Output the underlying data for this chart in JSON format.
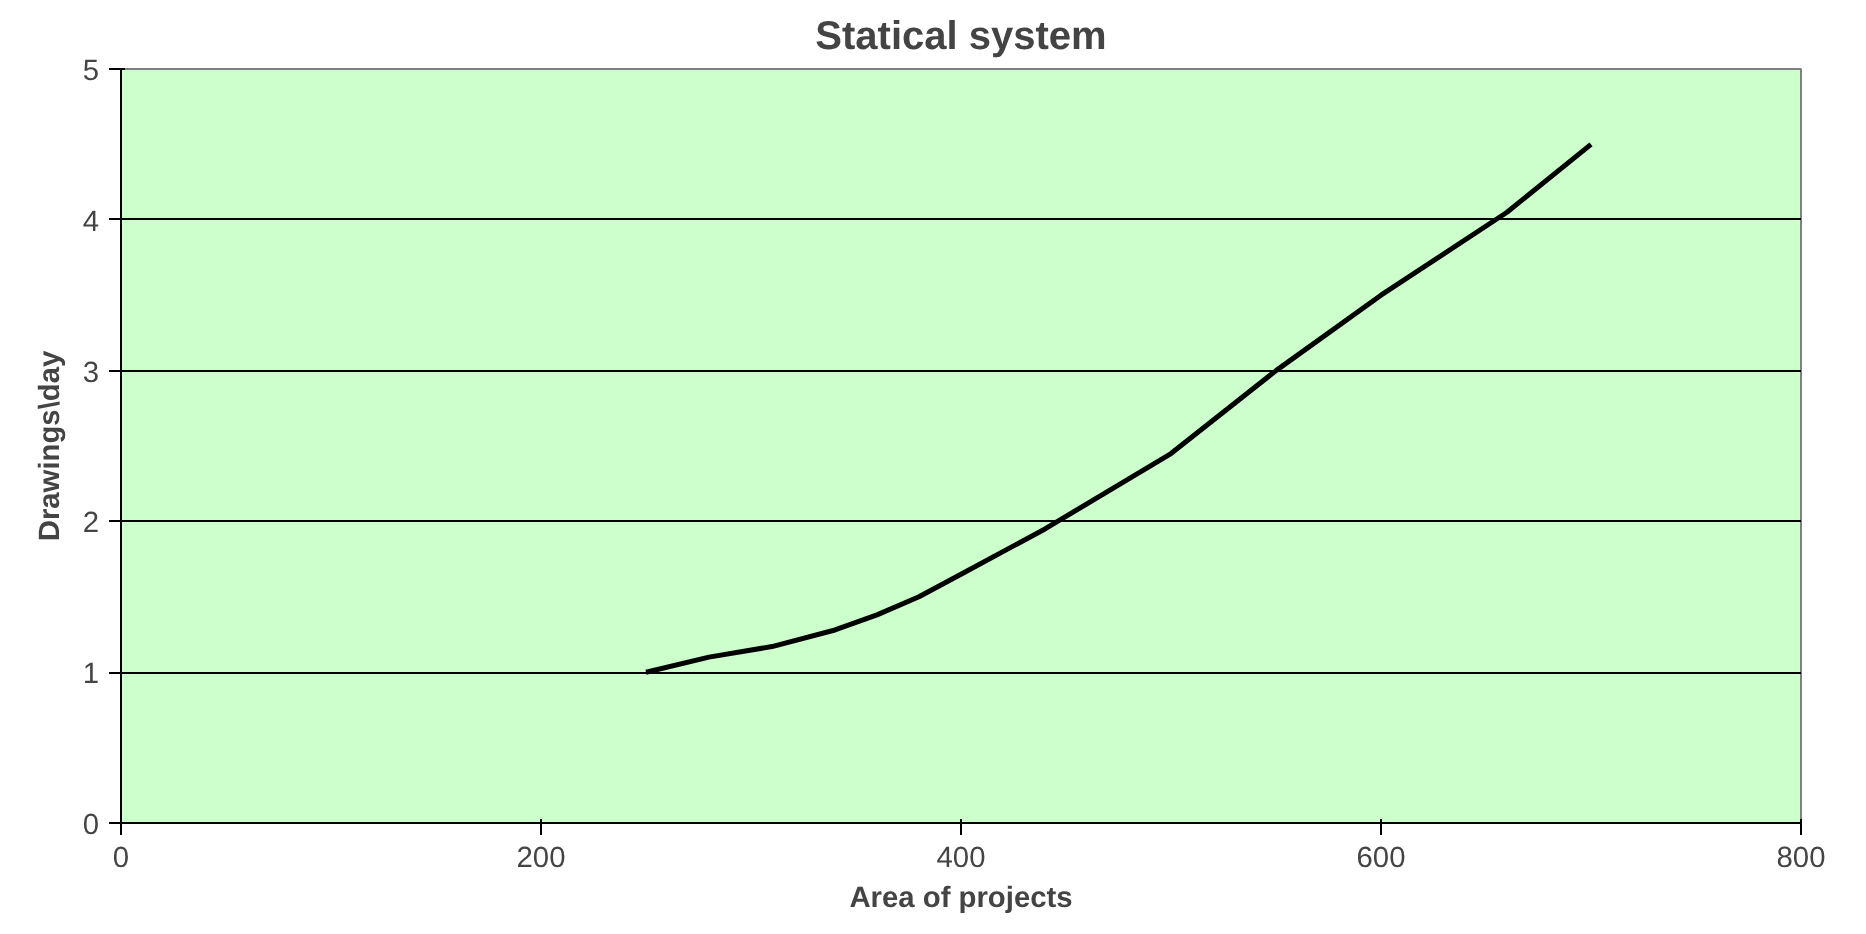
{
  "chart_data": {
    "type": "line",
    "title": "Statical system",
    "xlabel": "Area of projects",
    "ylabel": "Drawings\\day",
    "x": [
      250,
      280,
      310,
      340,
      360,
      380,
      400,
      440,
      500,
      550,
      600,
      660,
      700
    ],
    "series": [
      {
        "color": "#000000",
        "values": [
          1,
          1.1,
          1.17,
          1.28,
          1.38,
          1.5,
          1.65,
          1.95,
          2.45,
          3.0,
          3.5,
          4.05,
          4.5
        ]
      }
    ],
    "xlim": [
      0,
      800
    ],
    "xticks": [
      0,
      200,
      400,
      600,
      800
    ],
    "ylim": [
      0,
      5
    ],
    "yticks": [
      0,
      1,
      2,
      3,
      4,
      5
    ],
    "grid": "y",
    "marker": "none",
    "line_style": "solid"
  }
}
